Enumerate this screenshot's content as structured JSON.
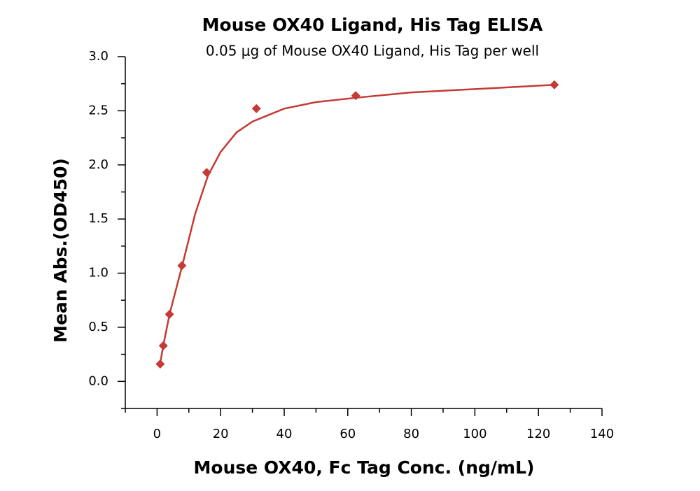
{
  "chart_data": {
    "type": "scatter",
    "title": "Mouse OX40 Ligand, His Tag ELISA",
    "subtitle": "0.05 μg of Mouse OX40 Ligand, His Tag per well",
    "x_label": "Mouse OX40, Fc Tag Conc. (ng/mL)",
    "y_label": "Mean Abs.(OD450)",
    "color": "#c43a35",
    "x": [
      0.977,
      1.953,
      3.906,
      7.8125,
      15.625,
      31.25,
      62.5,
      125
    ],
    "values": [
      0.16,
      0.33,
      0.62,
      1.07,
      1.93,
      2.52,
      2.64,
      2.74
    ],
    "fit": {
      "x": [
        1,
        2,
        4,
        8,
        12,
        16,
        20,
        25,
        30,
        40,
        50,
        62.5,
        80,
        100,
        125
      ],
      "values": [
        0.17,
        0.34,
        0.63,
        1.08,
        1.55,
        1.9,
        2.12,
        2.3,
        2.4,
        2.52,
        2.58,
        2.62,
        2.67,
        2.7,
        2.74
      ]
    },
    "xlim": [
      -10,
      140
    ],
    "ylim": [
      -0.25,
      3.0
    ],
    "xticks": [
      0,
      20,
      40,
      60,
      80,
      100,
      120,
      140
    ],
    "yticks": [
      {
        "value": 0,
        "label": "0.0"
      },
      0.5,
      {
        "value": 1,
        "label": "1.0"
      },
      1.5,
      {
        "value": 2,
        "label": "2.0"
      },
      2.5,
      {
        "value": 3,
        "label": "3.0"
      }
    ],
    "xminorticks": [
      -10,
      10,
      30,
      50,
      70,
      90,
      110,
      130
    ],
    "yminorticks": [
      -0.25,
      0.25,
      0.75,
      1.25,
      1.75,
      2.25,
      2.75
    ]
  }
}
